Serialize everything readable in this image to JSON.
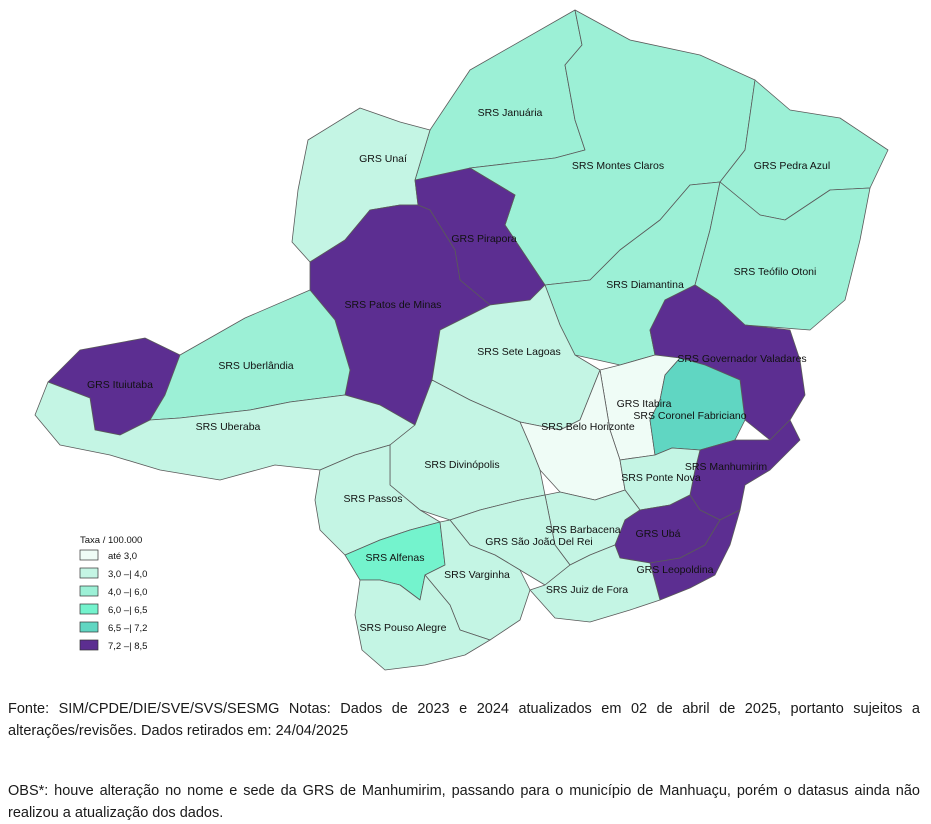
{
  "legend": {
    "title": "Taxa / 100.000",
    "classes": [
      {
        "label": "até 3,0",
        "color": "#effcf6"
      },
      {
        "label": "3,0 –| 4,0",
        "color": "#c4f5e4"
      },
      {
        "label": "4,0 –| 6,0",
        "color": "#9cf0d6"
      },
      {
        "label": "6,0 –| 6,5",
        "color": "#74f3cd"
      },
      {
        "label": "6,5 –| 7,2",
        "color": "#60d6c2"
      },
      {
        "label": "7,2 –| 8,5",
        "color": "#5c2e91"
      }
    ]
  },
  "regions": [
    {
      "name": "SRS Januária",
      "class": 2
    },
    {
      "name": "GRS Unaí",
      "class": 1
    },
    {
      "name": "SRS Montes Claros",
      "class": 2
    },
    {
      "name": "GRS Pedra Azul",
      "class": 2
    },
    {
      "name": "GRS Pirapora",
      "class": 5
    },
    {
      "name": "SRS Patos de Minas",
      "class": 5
    },
    {
      "name": "SRS Diamantina",
      "class": 2
    },
    {
      "name": "SRS Teófilo Otoni",
      "class": 2
    },
    {
      "name": "GRS Ituiutaba",
      "class": 5
    },
    {
      "name": "SRS Uberlândia",
      "class": 2
    },
    {
      "name": "SRS Uberaba",
      "class": 1
    },
    {
      "name": "SRS Sete Lagoas",
      "class": 1
    },
    {
      "name": "SRS Governador Valadares",
      "class": 5
    },
    {
      "name": "GRS Itabira",
      "class": 0
    },
    {
      "name": "SRS Coronel Fabriciano",
      "class": 4
    },
    {
      "name": "SRS Belo Horizonte",
      "class": 0
    },
    {
      "name": "SRS Divinópolis",
      "class": 1
    },
    {
      "name": "SRS Manhumirim",
      "class": 5
    },
    {
      "name": "SRS Ponte Nova",
      "class": 1
    },
    {
      "name": "SRS Passos",
      "class": 1
    },
    {
      "name": "SRS Barbacena",
      "class": 1
    },
    {
      "name": "GRS São João Del Rei",
      "class": 1
    },
    {
      "name": "GRS Ubá",
      "class": 5
    },
    {
      "name": "SRS Alfenas",
      "class": 3
    },
    {
      "name": "SRS Varginha",
      "class": 1
    },
    {
      "name": "GRS Leopoldina",
      "class": 5
    },
    {
      "name": "SRS Juiz de Fora",
      "class": 1
    },
    {
      "name": "SRS Pouso Alegre",
      "class": 1
    }
  ],
  "notes": {
    "source": "Fonte: SIM/CPDE/DIE/SVE/SVS/SESMG Notas: Dados de 2023 e 2024 atualizados em 02 de abril de 2025, portanto sujeitos a alterações/revisões. Dados retirados em: 24/04/2025",
    "obs": "OBS*: houve alteração no nome e sede da GRS de Manhumirim, passando para o município de Manhuaçu, porém o datasus ainda não realizou a atualização dos dados."
  }
}
